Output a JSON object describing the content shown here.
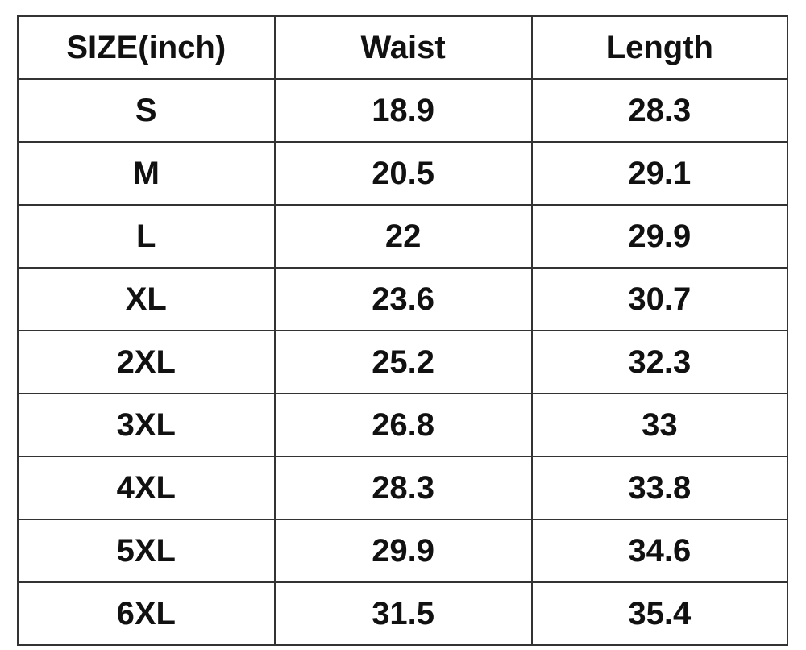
{
  "table": {
    "headers": [
      "SIZE(inch)",
      "Waist",
      "Length"
    ],
    "rows": [
      [
        "S",
        "18.9",
        "28.3"
      ],
      [
        "M",
        "20.5",
        "29.1"
      ],
      [
        "L",
        "22",
        "29.9"
      ],
      [
        "XL",
        "23.6",
        "30.7"
      ],
      [
        "2XL",
        "25.2",
        "32.3"
      ],
      [
        "3XL",
        "26.8",
        "33"
      ],
      [
        "4XL",
        "28.3",
        "33.8"
      ],
      [
        "5XL",
        "29.9",
        "34.6"
      ],
      [
        "6XL",
        "31.5",
        "35.4"
      ]
    ]
  }
}
